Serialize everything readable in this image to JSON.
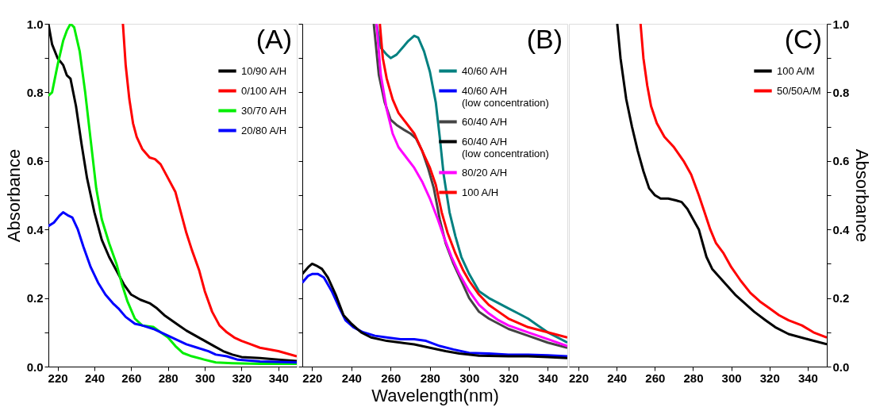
{
  "chart_data": [
    {
      "type": "line",
      "ylabel": "Absorbance",
      "xlim": [
        215,
        350
      ],
      "xticks": [
        220,
        240,
        260,
        280,
        300,
        320,
        340
      ],
      "ylim": [
        0,
        1
      ],
      "yticks": [
        {
          "value": 0,
          "label": "0.0"
        },
        {
          "value": 0.1,
          "label": null
        },
        0.2,
        {
          "value": 0.3,
          "label": null
        },
        0.4,
        {
          "value": 0.5,
          "label": null
        },
        0.6,
        {
          "value": 0.7,
          "label": null
        },
        0.8,
        {
          "value": 0.9,
          "label": null
        },
        {
          "value": 1,
          "label": "1.0"
        }
      ],
      "grid": false,
      "legend": "top right",
      "annotations": [
        "(A)"
      ],
      "series": [
        {
          "name": "10/90 A/H",
          "color": "#000000",
          "x": [
            215,
            217,
            220,
            223,
            225,
            227,
            230,
            233,
            236,
            240,
            244,
            248,
            252,
            256,
            260,
            265,
            270,
            274,
            278,
            282,
            286,
            290,
            295,
            300,
            305,
            310,
            315,
            320,
            330,
            340,
            350
          ],
          "values": [
            1.0,
            0.94,
            0.9,
            0.88,
            0.85,
            0.84,
            0.76,
            0.65,
            0.55,
            0.45,
            0.37,
            0.32,
            0.28,
            0.24,
            0.21,
            0.195,
            0.185,
            0.17,
            0.15,
            0.135,
            0.12,
            0.105,
            0.09,
            0.075,
            0.06,
            0.045,
            0.035,
            0.028,
            0.025,
            0.02,
            0.016
          ]
        },
        {
          "name": "0/100 A/H",
          "color": "#ff0000",
          "x": [
            255.5,
            257,
            259,
            261,
            263,
            266,
            270,
            273,
            276,
            280,
            284,
            287,
            290,
            293,
            297,
            300,
            304,
            308,
            312,
            316,
            320,
            325,
            330,
            340,
            350
          ],
          "values": [
            1.0,
            0.88,
            0.78,
            0.71,
            0.67,
            0.635,
            0.61,
            0.605,
            0.59,
            0.55,
            0.51,
            0.45,
            0.39,
            0.34,
            0.28,
            0.22,
            0.16,
            0.12,
            0.1,
            0.085,
            0.075,
            0.065,
            0.055,
            0.045,
            0.03
          ]
        },
        {
          "name": "30/70 A/H",
          "color": "#00ee00",
          "x": [
            215,
            217,
            220,
            223,
            225,
            227,
            229,
            232,
            235,
            238,
            241,
            244,
            248,
            252,
            255,
            258,
            262,
            266,
            272,
            276,
            280,
            284,
            288,
            293,
            300,
            306,
            315,
            330,
            350
          ],
          "values": [
            0.79,
            0.8,
            0.88,
            0.95,
            0.98,
            1.0,
            0.99,
            0.92,
            0.8,
            0.66,
            0.52,
            0.43,
            0.36,
            0.3,
            0.24,
            0.19,
            0.14,
            0.12,
            0.116,
            0.1,
            0.085,
            0.06,
            0.04,
            0.03,
            0.02,
            0.012,
            0.01,
            0.008,
            0.008
          ]
        },
        {
          "name": "20/80 A/H",
          "color": "#0000ff",
          "x": [
            215,
            218,
            221,
            223,
            226,
            228,
            231,
            234,
            238,
            242,
            246,
            250,
            253,
            257,
            262,
            266,
            272,
            278,
            284,
            290,
            296,
            302,
            306,
            312,
            318,
            330,
            350
          ],
          "values": [
            0.41,
            0.42,
            0.44,
            0.45,
            0.44,
            0.435,
            0.4,
            0.35,
            0.29,
            0.245,
            0.21,
            0.185,
            0.17,
            0.145,
            0.125,
            0.12,
            0.11,
            0.095,
            0.08,
            0.065,
            0.055,
            0.045,
            0.035,
            0.03,
            0.02,
            0.015,
            0.012
          ]
        }
      ]
    },
    {
      "type": "line",
      "xlabel": "Wavelength(nm)",
      "xlim": [
        215,
        350
      ],
      "xticks": [
        220,
        240,
        260,
        280,
        300,
        320,
        340
      ],
      "ylim": [
        0,
        1
      ],
      "yticks": [
        0,
        0.1,
        0.2,
        0.3,
        0.4,
        0.5,
        0.6,
        0.7,
        0.8,
        0.9,
        1
      ],
      "tick_labels": "x",
      "grid": false,
      "legend": "top right",
      "annotations": [
        "(B)"
      ],
      "series": [
        {
          "name": "40/60 A/H",
          "color": "#008080",
          "x": [
            252.8,
            255,
            258,
            260,
            263,
            266,
            269,
            272,
            274,
            277,
            280,
            283,
            285,
            287,
            290,
            293,
            296,
            300,
            305,
            310,
            315,
            320,
            325,
            330,
            335,
            340,
            345,
            350
          ],
          "values": [
            1.0,
            0.93,
            0.91,
            0.9,
            0.91,
            0.93,
            0.95,
            0.965,
            0.96,
            0.92,
            0.86,
            0.77,
            0.67,
            0.56,
            0.45,
            0.38,
            0.32,
            0.27,
            0.22,
            0.2,
            0.185,
            0.17,
            0.155,
            0.14,
            0.12,
            0.1,
            0.085,
            0.07
          ]
        },
        {
          "name": "40/60 A/H (low concentration)",
          "color": "#0000ff",
          "x": [
            215,
            218,
            220,
            223,
            226,
            230,
            234,
            237,
            241,
            246,
            252,
            258,
            265,
            272,
            278,
            285,
            292,
            300,
            310,
            320,
            330,
            340,
            350
          ],
          "values": [
            0.245,
            0.265,
            0.27,
            0.27,
            0.26,
            0.22,
            0.17,
            0.135,
            0.115,
            0.1,
            0.09,
            0.085,
            0.08,
            0.08,
            0.075,
            0.06,
            0.05,
            0.04,
            0.038,
            0.035,
            0.035,
            0.033,
            0.03
          ]
        },
        {
          "name": "60/40 A/H",
          "color": "#444444",
          "x": [
            251.4,
            254,
            257,
            260,
            263,
            267,
            270,
            273,
            276,
            279,
            282,
            285,
            288,
            292,
            296,
            300,
            305,
            310,
            315,
            320,
            330,
            340,
            350
          ],
          "values": [
            1.0,
            0.85,
            0.77,
            0.72,
            0.705,
            0.69,
            0.68,
            0.665,
            0.63,
            0.58,
            0.52,
            0.43,
            0.36,
            0.3,
            0.25,
            0.2,
            0.16,
            0.14,
            0.125,
            0.11,
            0.09,
            0.07,
            0.055
          ]
        },
        {
          "name": "60/40 A/H (low concentration)",
          "color": "#000000",
          "x": [
            215,
            218,
            220,
            222,
            225,
            228,
            232,
            236,
            240,
            245,
            250,
            258,
            265,
            272,
            280,
            288,
            295,
            305,
            320,
            330,
            340,
            350
          ],
          "values": [
            0.27,
            0.29,
            0.3,
            0.295,
            0.285,
            0.26,
            0.21,
            0.15,
            0.125,
            0.1,
            0.085,
            0.075,
            0.07,
            0.065,
            0.055,
            0.045,
            0.038,
            0.032,
            0.03,
            0.03,
            0.028,
            0.025
          ]
        },
        {
          "name": "80/20 A/H",
          "color": "#ff00ff",
          "x": [
            252.8,
            255,
            258,
            261,
            264,
            268,
            272,
            276,
            280,
            284,
            287,
            291,
            295,
            300,
            305,
            310,
            315,
            320,
            330,
            340,
            350
          ],
          "values": [
            1.0,
            0.85,
            0.75,
            0.68,
            0.64,
            0.61,
            0.58,
            0.54,
            0.49,
            0.43,
            0.38,
            0.32,
            0.27,
            0.22,
            0.18,
            0.155,
            0.135,
            0.12,
            0.1,
            0.08,
            0.06
          ]
        },
        {
          "name": "100 A/H",
          "color": "#ff0000",
          "x": [
            254.5,
            256,
            258,
            261,
            264,
            268,
            272,
            276,
            280,
            283,
            286,
            289,
            293,
            297,
            300,
            305,
            310,
            315,
            320,
            330,
            340,
            350
          ],
          "values": [
            1.0,
            0.9,
            0.84,
            0.78,
            0.74,
            0.71,
            0.68,
            0.63,
            0.58,
            0.53,
            0.45,
            0.39,
            0.33,
            0.28,
            0.25,
            0.21,
            0.18,
            0.16,
            0.14,
            0.115,
            0.1,
            0.085
          ]
        }
      ]
    },
    {
      "type": "line",
      "y2label": "Absorbance",
      "xlim": [
        215,
        350
      ],
      "xticks": [
        220,
        240,
        260,
        280,
        300,
        320,
        340
      ],
      "y2lim": [
        0,
        1
      ],
      "y2ticks": [
        {
          "value": 0,
          "label": "0.0"
        },
        {
          "value": 0.1,
          "label": null
        },
        0.2,
        {
          "value": 0.3,
          "label": null
        },
        0.4,
        {
          "value": 0.5,
          "label": null
        },
        0.6,
        {
          "value": 0.7,
          "label": null
        },
        0.8,
        {
          "value": 0.9,
          "label": null
        },
        {
          "value": 1,
          "label": "1.0"
        }
      ],
      "grid": false,
      "legend": "top right",
      "annotations": [
        "(C)"
      ],
      "series": [
        {
          "name": "100 A/M",
          "color": "#000000",
          "axis": "y2",
          "x": [
            240.3,
            242,
            245,
            248,
            251,
            254,
            257,
            260,
            263,
            267,
            271,
            274,
            277,
            280,
            283,
            285,
            287,
            290,
            294,
            298,
            302,
            307,
            312,
            318,
            323,
            330,
            340,
            350
          ],
          "values": [
            1.0,
            0.9,
            0.78,
            0.7,
            0.63,
            0.57,
            0.52,
            0.5,
            0.49,
            0.49,
            0.485,
            0.48,
            0.46,
            0.43,
            0.4,
            0.36,
            0.32,
            0.285,
            0.26,
            0.235,
            0.21,
            0.185,
            0.16,
            0.135,
            0.115,
            0.095,
            0.08,
            0.065
          ]
        },
        {
          "name": "50/50A/M",
          "color": "#ff0000",
          "axis": "y2",
          "x": [
            252.5,
            254,
            256,
            258,
            261,
            265,
            270,
            275,
            279,
            283,
            286,
            289,
            292,
            296,
            300,
            305,
            310,
            315,
            320,
            325,
            330,
            337,
            343,
            350
          ],
          "values": [
            1.0,
            0.9,
            0.82,
            0.76,
            0.71,
            0.67,
            0.64,
            0.6,
            0.56,
            0.5,
            0.45,
            0.4,
            0.36,
            0.33,
            0.29,
            0.25,
            0.215,
            0.19,
            0.17,
            0.15,
            0.135,
            0.12,
            0.1,
            0.085
          ]
        }
      ]
    }
  ]
}
